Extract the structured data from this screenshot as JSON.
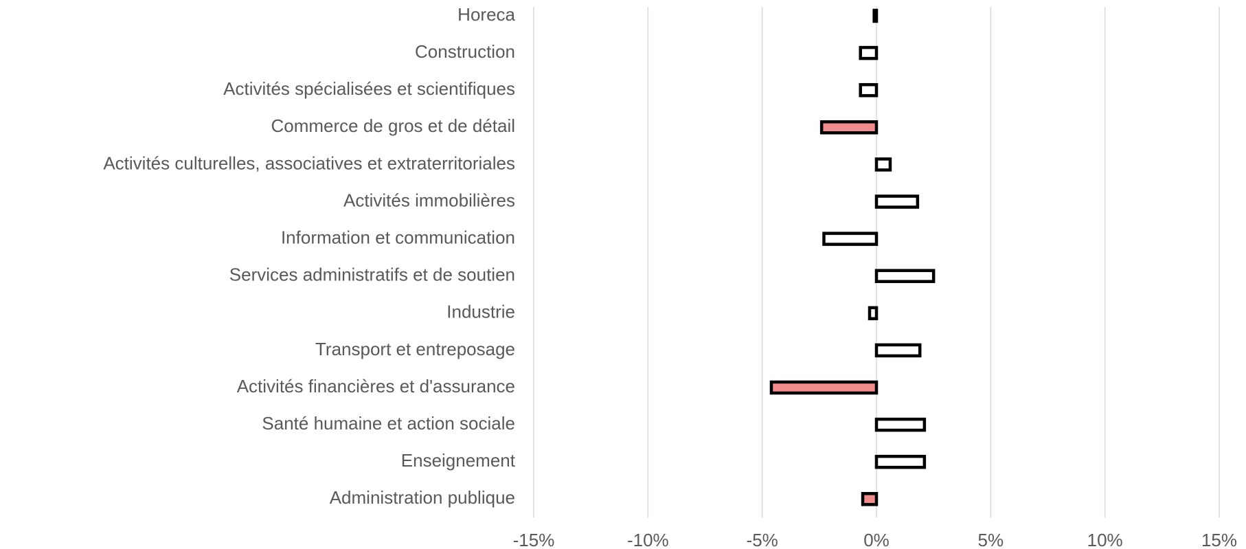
{
  "chart_data": {
    "type": "barh",
    "categories": [
      "Horeca",
      "Construction",
      "Activités spécialisées et scientifiques",
      "Commerce de gros et de détail",
      "Activités culturelles, associatives et extraterritoriales",
      "Activités immobilières",
      "Information et communication",
      "Services administratifs et de soutien",
      "Industrie",
      "Transport et entreposage",
      "Activités financières et d'assurance",
      "Santé humaine et action sociale",
      "Enseignement",
      "Administration publique"
    ],
    "values": [
      -0.1,
      -0.7,
      -0.7,
      -2.4,
      0.6,
      1.8,
      -2.3,
      2.5,
      -0.3,
      1.9,
      -4.6,
      2.1,
      2.1,
      -0.6
    ],
    "colors": [
      "#ffffff",
      "#ffffff",
      "#ffffff",
      "#f08c8c",
      "#ffffff",
      "#ffffff",
      "#ffffff",
      "#ffffff",
      "#ffffff",
      "#ffffff",
      "#f08c8c",
      "#ffffff",
      "#ffffff",
      "#f08c8c"
    ],
    "edge_color": "#000000",
    "xlim": [
      -15,
      15
    ],
    "xticks": [
      {
        "value": -15,
        "label": "-15%"
      },
      {
        "value": -10,
        "label": "-10%"
      },
      {
        "value": -5,
        "label": "-5%"
      },
      {
        "value": 0,
        "label": "0%"
      },
      {
        "value": 5,
        "label": "5%"
      },
      {
        "value": 10,
        "label": "10%"
      },
      {
        "value": 15,
        "label": "15%"
      }
    ],
    "grid": true
  }
}
